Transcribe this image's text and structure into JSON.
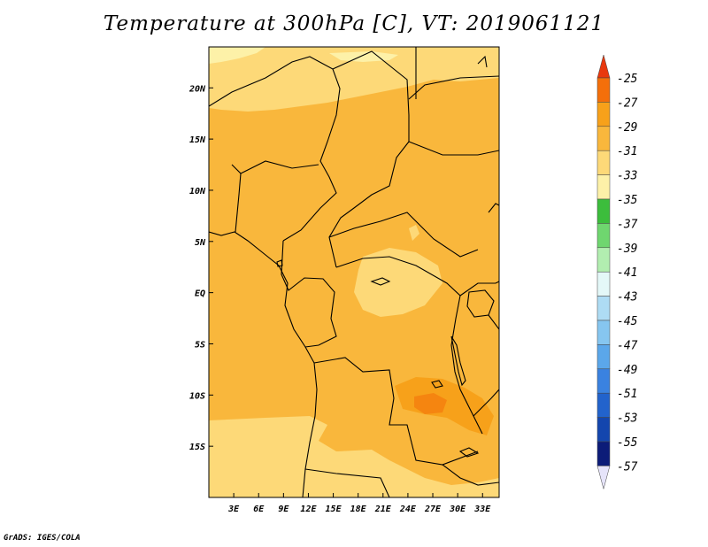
{
  "title": "Temperature at 300hPa [C], VT: 2019061121",
  "credit": "GrADS: IGES/COLA",
  "map": {
    "lon_range": [
      0,
      35
    ],
    "lat_range": [
      -20,
      24
    ],
    "lon_ticks": [
      {
        "lon": 3,
        "label": "3E"
      },
      {
        "lon": 6,
        "label": "6E"
      },
      {
        "lon": 9,
        "label": "9E"
      },
      {
        "lon": 12,
        "label": "12E"
      },
      {
        "lon": 15,
        "label": "15E"
      },
      {
        "lon": 18,
        "label": "18E"
      },
      {
        "lon": 21,
        "label": "21E"
      },
      {
        "lon": 24,
        "label": "24E"
      },
      {
        "lon": 27,
        "label": "27E"
      },
      {
        "lon": 30,
        "label": "30E"
      },
      {
        "lon": 33,
        "label": "33E"
      }
    ],
    "lat_ticks": [
      {
        "lat": 20,
        "label": "20N"
      },
      {
        "lat": 15,
        "label": "15N"
      },
      {
        "lat": 10,
        "label": "10N"
      },
      {
        "lat": 5,
        "label": "5N"
      },
      {
        "lat": 0,
        "label": "EQ"
      },
      {
        "lat": -5,
        "label": "5S"
      },
      {
        "lat": -10,
        "label": "10S"
      },
      {
        "lat": -15,
        "label": "15S"
      }
    ]
  },
  "colorbar": {
    "levels": [
      {
        "label": "-25",
        "color": "#e8380e"
      },
      {
        "label": "-27",
        "color": "#f46f0a"
      },
      {
        "label": "-29",
        "color": "#f7a11a"
      },
      {
        "label": "-31",
        "color": "#f9b73c"
      },
      {
        "label": "-33",
        "color": "#fdd978"
      },
      {
        "label": "-35",
        "color": "#fdf1a8"
      },
      {
        "label": "-37",
        "color": "#3cbd3c"
      },
      {
        "label": "-39",
        "color": "#6fd66f"
      },
      {
        "label": "-41",
        "color": "#b2eeb0"
      },
      {
        "label": "-43",
        "color": "#e4f8f8"
      },
      {
        "label": "-45",
        "color": "#aedcf4"
      },
      {
        "label": "-47",
        "color": "#86c6f0"
      },
      {
        "label": "-49",
        "color": "#5ba7ea"
      },
      {
        "label": "-51",
        "color": "#3a82e0"
      },
      {
        "label": "-53",
        "color": "#2263cc"
      },
      {
        "label": "-55",
        "color": "#1446ae"
      },
      {
        "label": "-57",
        "color": "#0c1c78"
      }
    ],
    "top_color": "#e8380e",
    "bottom_color": "#e6e4fa"
  }
}
